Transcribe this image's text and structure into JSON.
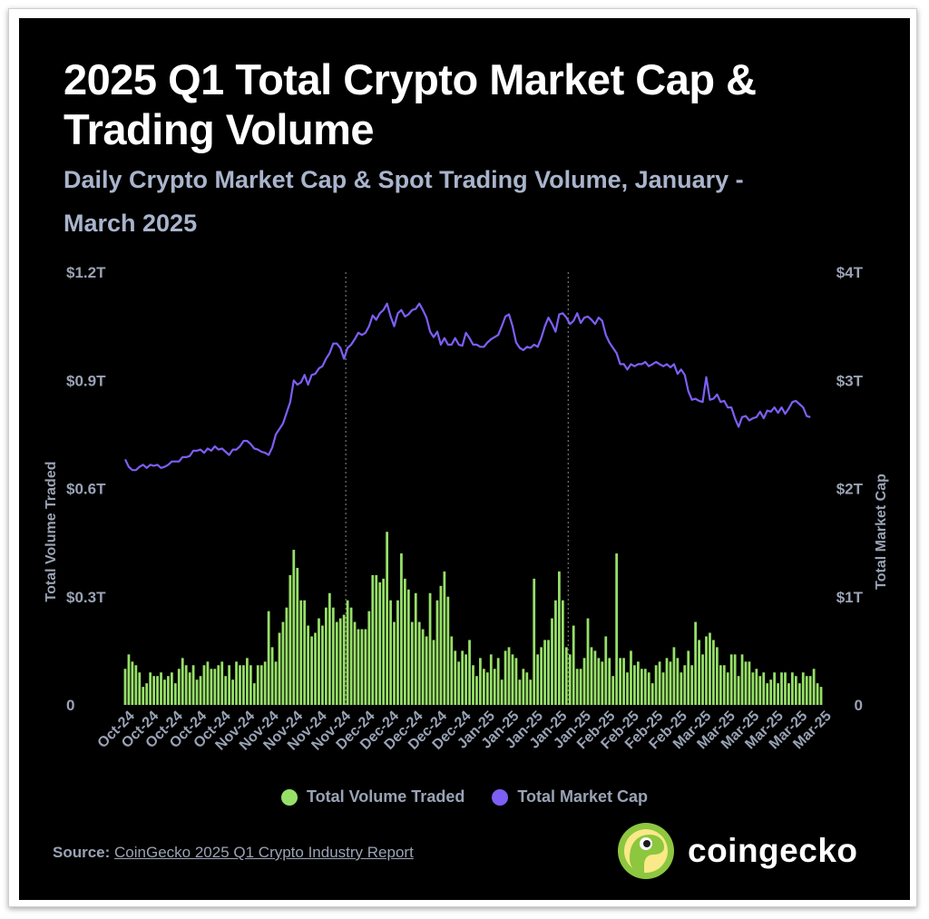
{
  "title": "2025 Q1 Total Crypto Market Cap & Trading Volume",
  "subtitle": "Daily Crypto Market Cap & Spot Trading Volume, January - March 2025",
  "source_label": "Source:",
  "source_link": "CoinGecko 2025 Q1 Crypto Industry Report",
  "brand": "coingecko",
  "colors": {
    "volume": "#97e068",
    "market_cap": "#7d5ff5",
    "background": "#000000",
    "axis_text": "#9aa3b5"
  },
  "chart_data": {
    "type": "bar+line",
    "ylabel_left": "Total Volume Traded",
    "ylabel_right": "Total Market Cap",
    "left_ticks": [
      "0",
      "$0.3T",
      "$0.6T",
      "$0.9T",
      "$1.2T"
    ],
    "left_tick_values": [
      0,
      0.3,
      0.6,
      0.9,
      1.2
    ],
    "right_ticks": [
      "0",
      "$1T",
      "$2T",
      "$3T",
      "$4T"
    ],
    "right_tick_values": [
      0,
      1,
      2,
      3,
      4
    ],
    "ylim_left": [
      0,
      1.2
    ],
    "ylim_right": [
      0,
      4
    ],
    "x_tick_labels": [
      "Oct-24",
      "Oct-24",
      "Oct-24",
      "Oct-24",
      "Oct-24",
      "Nov-24",
      "Nov-24",
      "Nov-24",
      "Nov-24",
      "Nov-24",
      "Dec-24",
      "Dec-24",
      "Dec-24",
      "Dec-24",
      "Dec-24",
      "Jan-25",
      "Jan-25",
      "Jan-25",
      "Jan-25",
      "Jan-25",
      "Feb-25",
      "Feb-25",
      "Feb-25",
      "Feb-25",
      "Mar-25",
      "Mar-25",
      "Mar-25",
      "Mar-25",
      "Mar-25",
      "Mar-25"
    ],
    "quarter_markers": [
      62,
      124
    ],
    "series": [
      {
        "name": "Total Volume Traded",
        "unit": "T USD",
        "values": [
          0.1,
          0.14,
          0.12,
          0.11,
          0.09,
          0.05,
          0.06,
          0.09,
          0.08,
          0.08,
          0.09,
          0.07,
          0.08,
          0.09,
          0.06,
          0.1,
          0.13,
          0.11,
          0.09,
          0.11,
          0.07,
          0.08,
          0.11,
          0.12,
          0.1,
          0.1,
          0.11,
          0.12,
          0.08,
          0.11,
          0.07,
          0.12,
          0.11,
          0.11,
          0.13,
          0.11,
          0.06,
          0.11,
          0.11,
          0.12,
          0.26,
          0.16,
          0.12,
          0.2,
          0.23,
          0.27,
          0.36,
          0.43,
          0.38,
          0.29,
          0.29,
          0.22,
          0.19,
          0.2,
          0.24,
          0.22,
          0.27,
          0.31,
          0.27,
          0.23,
          0.24,
          0.25,
          0.29,
          0.27,
          0.23,
          0.21,
          0.21,
          0.21,
          0.26,
          0.36,
          0.36,
          0.34,
          0.35,
          0.48,
          0.29,
          0.23,
          0.29,
          0.42,
          0.35,
          0.32,
          0.23,
          0.31,
          0.23,
          0.21,
          0.19,
          0.31,
          0.18,
          0.29,
          0.33,
          0.37,
          0.3,
          0.19,
          0.15,
          0.12,
          0.15,
          0.14,
          0.18,
          0.11,
          0.08,
          0.13,
          0.1,
          0.09,
          0.14,
          0.1,
          0.13,
          0.07,
          0.15,
          0.16,
          0.14,
          0.13,
          0.07,
          0.1,
          0.09,
          0.07,
          0.35,
          0.14,
          0.16,
          0.18,
          0.18,
          0.24,
          0.29,
          0.37,
          0.29,
          0.16,
          0.14,
          0.22,
          0.1,
          0.1,
          0.13,
          0.24,
          0.16,
          0.15,
          0.13,
          0.12,
          0.19,
          0.13,
          0.08,
          0.42,
          0.13,
          0.13,
          0.09,
          0.15,
          0.11,
          0.12,
          0.1,
          0.1,
          0.09,
          0.06,
          0.11,
          0.12,
          0.09,
          0.13,
          0.12,
          0.16,
          0.13,
          0.09,
          0.11,
          0.15,
          0.11,
          0.23,
          0.18,
          0.14,
          0.19,
          0.2,
          0.18,
          0.16,
          0.11,
          0.11,
          0.09,
          0.14,
          0.14,
          0.08,
          0.14,
          0.12,
          0.12,
          0.09,
          0.1,
          0.08,
          0.09,
          0.06,
          0.07,
          0.09,
          0.06,
          0.09,
          0.09,
          0.06,
          0.09,
          0.08,
          0.06,
          0.09,
          0.08,
          0.08,
          0.1,
          0.06,
          0.05
        ]
      },
      {
        "name": "Total Market Cap",
        "unit": "T USD",
        "values": [
          2.27,
          2.2,
          2.17,
          2.17,
          2.2,
          2.22,
          2.19,
          2.22,
          2.21,
          2.22,
          2.19,
          2.2,
          2.22,
          2.25,
          2.25,
          2.25,
          2.29,
          2.29,
          2.3,
          2.35,
          2.35,
          2.36,
          2.33,
          2.37,
          2.35,
          2.39,
          2.36,
          2.37,
          2.34,
          2.31,
          2.36,
          2.36,
          2.39,
          2.44,
          2.44,
          2.41,
          2.37,
          2.36,
          2.34,
          2.33,
          2.31,
          2.38,
          2.5,
          2.55,
          2.6,
          2.7,
          2.8,
          3.0,
          2.96,
          2.98,
          3.05,
          2.96,
          3.05,
          3.06,
          3.11,
          3.13,
          3.2,
          3.25,
          3.34,
          3.34,
          3.3,
          3.2,
          3.3,
          3.33,
          3.38,
          3.44,
          3.42,
          3.44,
          3.5,
          3.6,
          3.56,
          3.62,
          3.65,
          3.71,
          3.59,
          3.5,
          3.62,
          3.65,
          3.59,
          3.61,
          3.65,
          3.66,
          3.71,
          3.65,
          3.58,
          3.45,
          3.4,
          3.45,
          3.33,
          3.39,
          3.33,
          3.33,
          3.39,
          3.33,
          3.32,
          3.44,
          3.39,
          3.33,
          3.33,
          3.31,
          3.31,
          3.35,
          3.38,
          3.4,
          3.42,
          3.5,
          3.59,
          3.61,
          3.5,
          3.35,
          3.3,
          3.28,
          3.31,
          3.3,
          3.33,
          3.31,
          3.39,
          3.5,
          3.58,
          3.52,
          3.45,
          3.61,
          3.62,
          3.58,
          3.52,
          3.55,
          3.62,
          3.53,
          3.58,
          3.59,
          3.56,
          3.52,
          3.58,
          3.55,
          3.42,
          3.35,
          3.3,
          3.25,
          3.15,
          3.15,
          3.1,
          3.15,
          3.13,
          3.15,
          3.15,
          3.17,
          3.13,
          3.15,
          3.17,
          3.15,
          3.13,
          3.15,
          3.12,
          3.15,
          3.06,
          3.1,
          3.05,
          2.9,
          2.82,
          2.83,
          2.81,
          2.8,
          3.03,
          2.82,
          2.83,
          2.87,
          2.8,
          2.81,
          2.75,
          2.75,
          2.65,
          2.57,
          2.66,
          2.67,
          2.63,
          2.65,
          2.66,
          2.71,
          2.65,
          2.72,
          2.71,
          2.75,
          2.7,
          2.75,
          2.69,
          2.74,
          2.8,
          2.81,
          2.78,
          2.75,
          2.67,
          2.66
        ]
      }
    ],
    "legend_position": "bottom-center"
  }
}
